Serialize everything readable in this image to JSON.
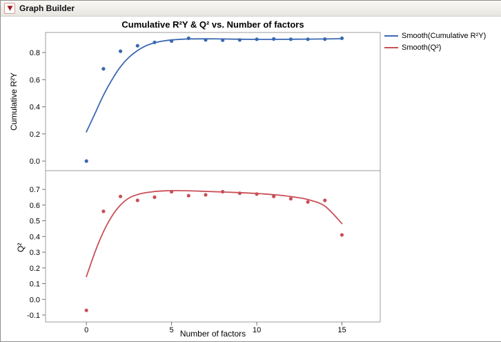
{
  "window": {
    "title": "Graph Builder"
  },
  "chart_data": {
    "type": "scatter",
    "title": "Cumulative R²Y & Q² vs. Number of factors",
    "xlabel": "Number of factors",
    "xlim": [
      -2.4,
      17.25
    ],
    "x_ticks": {
      "values": [
        0,
        5,
        10,
        15
      ],
      "labels": [
        "0",
        "5",
        "10",
        "15"
      ]
    },
    "grid": "off",
    "legend_position": "right",
    "legend": [
      {
        "label": "Smooth(Cumulative R²Y)",
        "color": "#3a67b1"
      },
      {
        "label": "Smooth(Q²)",
        "color": "#c94f58"
      }
    ],
    "panels": [
      {
        "ylabel": "Cumulative R²Y",
        "ylim": [
          -0.071,
          0.948
        ],
        "yticks": {
          "values": [
            0.0,
            0.2,
            0.4,
            0.6,
            0.8
          ],
          "labels": [
            "0.0",
            "0.2",
            "0.4",
            "0.6",
            "0.8"
          ]
        },
        "series": {
          "name": "Cumulative R²Y",
          "color": "#3a67b1",
          "x": [
            0,
            1,
            2,
            3,
            4,
            5,
            6,
            7,
            8,
            9,
            10,
            11,
            12,
            13,
            14,
            15
          ],
          "y": [
            0.0,
            0.68,
            0.81,
            0.85,
            0.875,
            0.885,
            0.905,
            0.893,
            0.891,
            0.893,
            0.898,
            0.9,
            0.898,
            0.898,
            0.899,
            0.905
          ],
          "smooth": {
            "x": [
              0,
              0.5,
              1,
              1.5,
              2,
              2.5,
              3,
              3.5,
              4,
              4.5,
              5,
              6,
              7,
              8,
              9,
              10,
              11,
              12,
              13,
              14,
              15
            ],
            "y": [
              0.215,
              0.35,
              0.485,
              0.6,
              0.695,
              0.765,
              0.815,
              0.85,
              0.872,
              0.885,
              0.893,
              0.9,
              0.901,
              0.9,
              0.898,
              0.897,
              0.897,
              0.898,
              0.899,
              0.9,
              0.902
            ]
          }
        }
      },
      {
        "ylabel": "Q²",
        "ylim": [
          -0.144,
          0.819
        ],
        "yticks": {
          "values": [
            -0.1,
            0.0,
            0.1,
            0.2,
            0.3,
            0.4,
            0.5,
            0.6,
            0.7
          ],
          "labels": [
            "-0.1",
            "0.0",
            "0.1",
            "0.2",
            "0.3",
            "0.4",
            "0.5",
            "0.6",
            "0.7"
          ]
        },
        "series": {
          "name": "Q²",
          "color": "#c94f58",
          "x": [
            0,
            1,
            2,
            3,
            4,
            5,
            6,
            7,
            8,
            9,
            10,
            11,
            12,
            13,
            14,
            15
          ],
          "y": [
            -0.07,
            0.56,
            0.655,
            0.63,
            0.65,
            0.685,
            0.66,
            0.665,
            0.685,
            0.675,
            0.67,
            0.655,
            0.64,
            0.62,
            0.63,
            0.41
          ],
          "smooth": {
            "x": [
              0,
              0.5,
              1,
              1.5,
              2,
              2.5,
              3,
              3.5,
              4,
              4.5,
              5,
              6,
              7,
              8,
              9,
              10,
              11,
              12,
              13,
              14,
              15
            ],
            "y": [
              0.145,
              0.3,
              0.43,
              0.53,
              0.6,
              0.645,
              0.667,
              0.679,
              0.686,
              0.69,
              0.692,
              0.691,
              0.687,
              0.683,
              0.679,
              0.674,
              0.666,
              0.654,
              0.635,
              0.593,
              0.482
            ]
          }
        }
      }
    ]
  }
}
